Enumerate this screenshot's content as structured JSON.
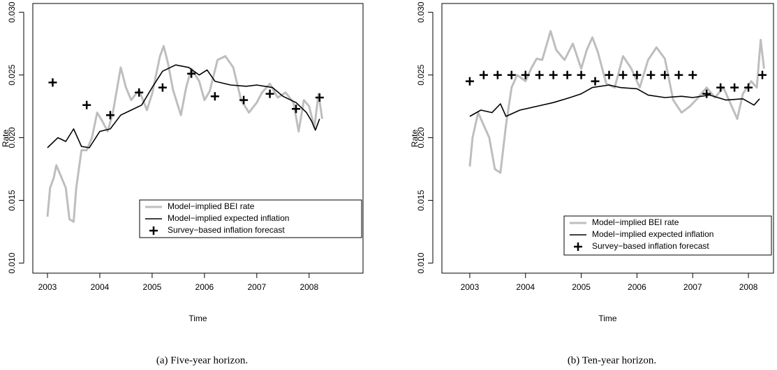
{
  "chart_data": [
    {
      "type": "line",
      "caption": "(a) Five-year horizon.",
      "xlabel": "Time",
      "ylabel": "Rate",
      "xlim": [
        2002.72,
        2009.03
      ],
      "ylim": [
        0.0092,
        0.0307
      ],
      "xticks": [
        2003,
        2004,
        2005,
        2006,
        2007,
        2008
      ],
      "yticks": [
        {
          "value": 0.01,
          "label": "0.010"
        },
        0.015,
        {
          "value": 0.02,
          "label": "0.020"
        },
        0.025,
        {
          "value": 0.03,
          "label": "0.030"
        }
      ],
      "legend": "bottomright",
      "series": [
        {
          "name": "Model−implied BEI rate",
          "color": "#bebebe",
          "style": "line",
          "x": [
            2003,
            2003.05,
            2003.12,
            2003.17,
            2003.25,
            2003.35,
            2003.42,
            2003.5,
            2003.55,
            2003.65,
            2003.75,
            2003.85,
            2003.95,
            2004.05,
            2004.15,
            2004.25,
            2004.4,
            2004.5,
            2004.6,
            2004.75,
            2004.9,
            2005.0,
            2005.15,
            2005.22,
            2005.3,
            2005.4,
            2005.55,
            2005.65,
            2005.75,
            2005.9,
            2006.0,
            2006.1,
            2006.25,
            2006.4,
            2006.55,
            2006.7,
            2006.85,
            2007.0,
            2007.1,
            2007.25,
            2007.4,
            2007.55,
            2007.7,
            2007.8,
            2007.9,
            2008.0,
            2008.1,
            2008.18,
            2008.25
          ],
          "values": [
            0.0137,
            0.016,
            0.0168,
            0.0178,
            0.017,
            0.016,
            0.0135,
            0.0133,
            0.016,
            0.019,
            0.019,
            0.02,
            0.022,
            0.0213,
            0.0205,
            0.022,
            0.0256,
            0.024,
            0.023,
            0.0238,
            0.0222,
            0.0235,
            0.0265,
            0.0273,
            0.026,
            0.0238,
            0.0218,
            0.024,
            0.0255,
            0.0245,
            0.023,
            0.0237,
            0.0262,
            0.0265,
            0.0256,
            0.023,
            0.022,
            0.0228,
            0.0236,
            0.0243,
            0.0232,
            0.0236,
            0.0228,
            0.0205,
            0.023,
            0.0225,
            0.0208,
            0.0235,
            0.0215
          ]
        },
        {
          "name": "Model−implied expected inflation",
          "color": "#000000",
          "style": "line",
          "x": [
            2003,
            2003.2,
            2003.35,
            2003.5,
            2003.65,
            2003.8,
            2004.0,
            2004.2,
            2004.4,
            2004.6,
            2004.8,
            2005.0,
            2005.2,
            2005.45,
            2005.7,
            2005.9,
            2006.05,
            2006.2,
            2006.5,
            2006.8,
            2007.0,
            2007.3,
            2007.5,
            2007.75,
            2007.95,
            2008.05,
            2008.12,
            2008.2
          ],
          "values": [
            0.0192,
            0.02,
            0.0197,
            0.0207,
            0.0193,
            0.0192,
            0.0205,
            0.0207,
            0.0218,
            0.0222,
            0.0226,
            0.024,
            0.0253,
            0.0258,
            0.0256,
            0.025,
            0.0254,
            0.0245,
            0.0242,
            0.0241,
            0.0242,
            0.024,
            0.0233,
            0.0228,
            0.022,
            0.0213,
            0.0206,
            0.0215
          ]
        },
        {
          "name": "Survey−based inflation forecast",
          "color": "#000000",
          "style": "plus",
          "x": [
            2003.1,
            2003.75,
            2004.2,
            2004.75,
            2005.2,
            2005.75,
            2006.2,
            2006.75,
            2007.25,
            2007.75,
            2008.2
          ],
          "values": [
            0.0244,
            0.0226,
            0.0218,
            0.0236,
            0.024,
            0.0251,
            0.0233,
            0.023,
            0.0235,
            0.0223,
            0.0232
          ]
        }
      ]
    },
    {
      "type": "line",
      "caption": "(b) Ten-year horizon.",
      "xlabel": "Time",
      "ylabel": "Rate",
      "xlim": [
        2002.5,
        2008.45
      ],
      "ylim": [
        0.0092,
        0.0307
      ],
      "xticks": [
        2003,
        2004,
        2005,
        2006,
        2007,
        2008
      ],
      "yticks": [
        {
          "value": 0.01,
          "label": "0.010"
        },
        0.015,
        {
          "value": 0.02,
          "label": "0.020"
        },
        0.025,
        {
          "value": 0.03,
          "label": "0.030"
        }
      ],
      "legend": "bottomright",
      "series": [
        {
          "name": "Model−implied BEI rate",
          "color": "#bebebe",
          "style": "line",
          "x": [
            2003,
            2003.05,
            2003.15,
            2003.25,
            2003.35,
            2003.45,
            2003.55,
            2003.65,
            2003.75,
            2003.85,
            2004.0,
            2004.1,
            2004.2,
            2004.3,
            2004.45,
            2004.55,
            2004.7,
            2004.85,
            2005.0,
            2005.1,
            2005.2,
            2005.3,
            2005.45,
            2005.6,
            2005.75,
            2005.9,
            2006.05,
            2006.2,
            2006.35,
            2006.5,
            2006.65,
            2006.8,
            2006.95,
            2007.1,
            2007.25,
            2007.4,
            2007.55,
            2007.7,
            2007.8,
            2007.9,
            2008.05,
            2008.15,
            2008.22,
            2008.28
          ],
          "values": [
            0.0177,
            0.02,
            0.022,
            0.021,
            0.02,
            0.0175,
            0.0172,
            0.021,
            0.024,
            0.025,
            0.0245,
            0.0255,
            0.0263,
            0.0262,
            0.0285,
            0.027,
            0.0262,
            0.0275,
            0.0255,
            0.027,
            0.028,
            0.0268,
            0.0243,
            0.024,
            0.0265,
            0.0255,
            0.024,
            0.0262,
            0.0272,
            0.0263,
            0.023,
            0.022,
            0.0225,
            0.0232,
            0.024,
            0.0232,
            0.024,
            0.0225,
            0.0215,
            0.0235,
            0.0245,
            0.024,
            0.0278,
            0.0255
          ]
        },
        {
          "name": "Model−implied expected inflation",
          "color": "#000000",
          "style": "line",
          "x": [
            2003,
            2003.2,
            2003.4,
            2003.55,
            2003.65,
            2003.9,
            2004.2,
            2004.5,
            2004.8,
            2005.0,
            2005.2,
            2005.5,
            2005.7,
            2006.0,
            2006.2,
            2006.5,
            2006.8,
            2007.0,
            2007.3,
            2007.6,
            2007.9,
            2008.1,
            2008.2
          ],
          "values": [
            0.0217,
            0.0222,
            0.022,
            0.0227,
            0.0217,
            0.0222,
            0.0225,
            0.0228,
            0.0232,
            0.0235,
            0.024,
            0.0242,
            0.024,
            0.0239,
            0.0234,
            0.0232,
            0.0233,
            0.0232,
            0.0234,
            0.023,
            0.0231,
            0.0226,
            0.0231
          ]
        },
        {
          "name": "Survey−based inflation forecast",
          "color": "#000000",
          "style": "plus",
          "x": [
            2003,
            2003.25,
            2003.5,
            2003.75,
            2004,
            2004.25,
            2004.5,
            2004.75,
            2005,
            2005.25,
            2005.5,
            2005.75,
            2006,
            2006.25,
            2006.5,
            2006.75,
            2007,
            2007.25,
            2007.5,
            2007.75,
            2008,
            2008.25
          ],
          "values": [
            0.0245,
            0.025,
            0.025,
            0.025,
            0.025,
            0.025,
            0.025,
            0.025,
            0.025,
            0.0245,
            0.025,
            0.025,
            0.025,
            0.025,
            0.025,
            0.025,
            0.025,
            0.0235,
            0.024,
            0.024,
            0.024,
            0.025
          ]
        }
      ]
    }
  ]
}
